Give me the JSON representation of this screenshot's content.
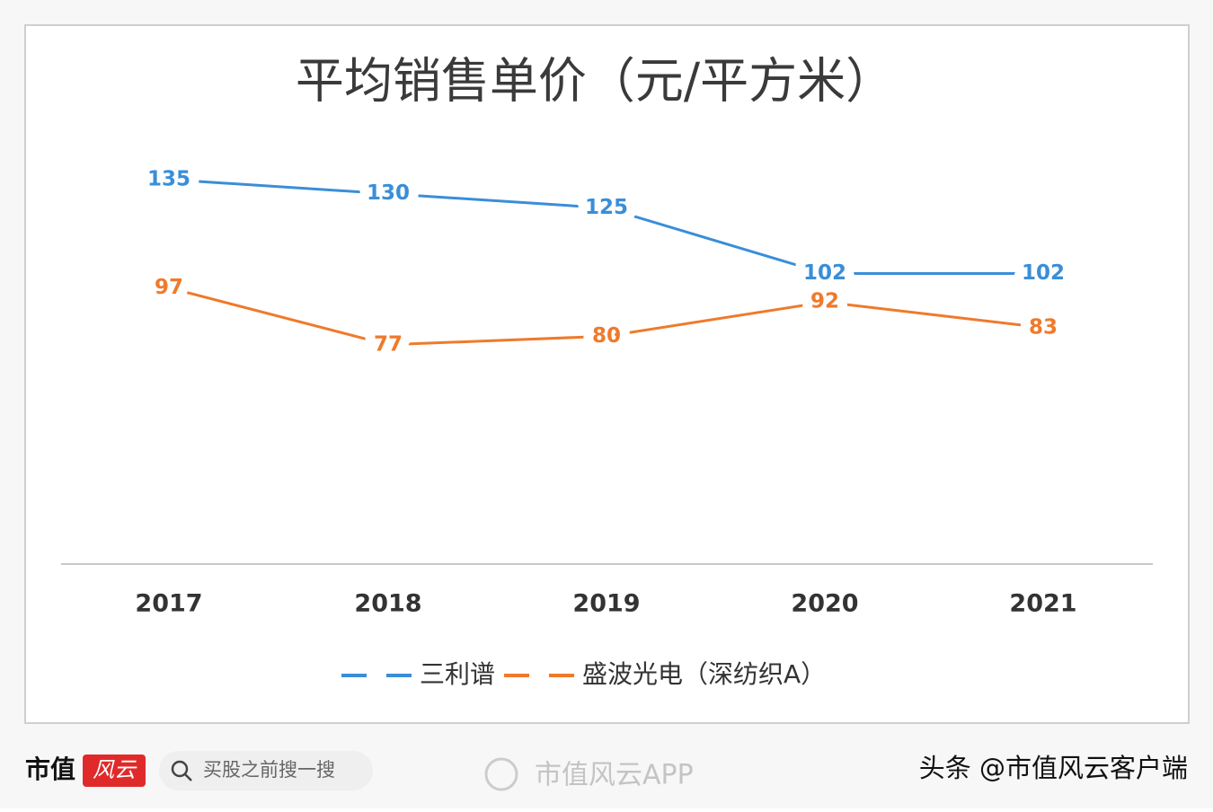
{
  "chart_data": {
    "type": "line",
    "title": "平均销售单价（元/平方米）",
    "categories": [
      "2017",
      "2018",
      "2019",
      "2020",
      "2021"
    ],
    "series": [
      {
        "name": "三利谱",
        "color": "#3a8ed8",
        "values": [
          135,
          130,
          125,
          102,
          102
        ]
      },
      {
        "name": "盛波光电（深纺织A）",
        "color": "#ef7a2b",
        "values": [
          97,
          77,
          80,
          92,
          83
        ]
      }
    ],
    "ylim": [
      0,
      140
    ],
    "legend": "bottom"
  },
  "footer": {
    "logo_text": "市值",
    "logo_badge": "风云",
    "search_placeholder": "买股之前搜一搜",
    "app_name": "市值风云APP",
    "source": "头条 @市值风云客户端"
  }
}
